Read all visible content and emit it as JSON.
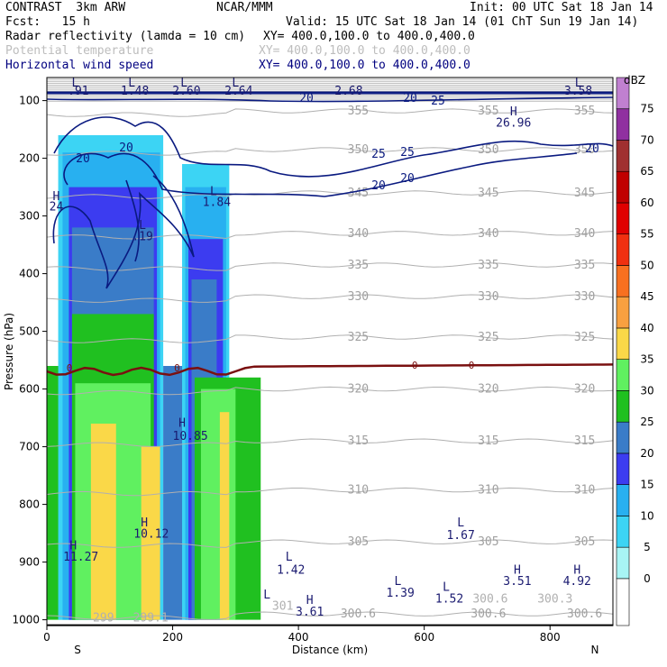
{
  "header": {
    "model": "CONTRAST  3km ARW",
    "center": "NCAR/MMM",
    "init": "Init: 00 UTC Sat 18 Jan 14",
    "fcst": "Fcst:   15 h",
    "valid": "Valid: 15 UTC Sat 18 Jan 14 (01 ChT Sun 19 Jan 14)",
    "fields": [
      {
        "name": "Radar reflectivity (lamda = 10 cm)",
        "xy": "XY= 400.0,100.0 to 400.0,400.0",
        "color": "#000000"
      },
      {
        "name": "Potential temperature",
        "xy": "XY= 400.0,100.0 to 400.0,400.0",
        "color": "#bdbdbd"
      },
      {
        "name": "Horizontal wind speed",
        "xy": "XY= 400.0,100.0 to 400.0,400.0",
        "color": "#000080"
      }
    ]
  },
  "chart_data": {
    "type": "cross-section contour",
    "xlabel": "Distance (km)",
    "ylabel": "Pressure (hPa)",
    "xlim": [
      0,
      900
    ],
    "ylim": [
      1010,
      60
    ],
    "x_ticks": [
      0,
      200,
      400,
      600,
      800
    ],
    "y_ticks": [
      100,
      200,
      300,
      400,
      500,
      600,
      700,
      800,
      900,
      1000
    ],
    "x_end_labels": {
      "left": "S",
      "right": "N"
    },
    "colorbar": {
      "unit": "dBZ",
      "levels": [
        0,
        5,
        10,
        15,
        20,
        25,
        30,
        35,
        40,
        45,
        50,
        55,
        60,
        65,
        70,
        75
      ],
      "colors": [
        "#ffffff",
        "#a8f4f4",
        "#3cd4f4",
        "#28b0f0",
        "#3c3cf0",
        "#3a7cc8",
        "#20c020",
        "#60f060",
        "#fad848",
        "#f8a040",
        "#f87020",
        "#f03010",
        "#e00000",
        "#c00000",
        "#a03030",
        "#9030a0",
        "#c080d0"
      ]
    },
    "reflectivity_columns": [
      {
        "x0": 0,
        "x1": 50,
        "bottom": 1000,
        "top": 560,
        "level": 25
      },
      {
        "x0": 18,
        "x1": 185,
        "bottom": 1000,
        "top": 160,
        "level": 5
      },
      {
        "x0": 25,
        "x1": 180,
        "bottom": 1000,
        "top": 190,
        "level": 10
      },
      {
        "x0": 35,
        "x1": 175,
        "bottom": 1000,
        "top": 250,
        "level": 15
      },
      {
        "x0": 40,
        "x1": 170,
        "bottom": 1000,
        "top": 320,
        "level": 20
      },
      {
        "x0": 40,
        "x1": 170,
        "bottom": 1000,
        "top": 470,
        "level": 25
      },
      {
        "x0": 45,
        "x1": 165,
        "bottom": 1000,
        "top": 590,
        "level": 30
      },
      {
        "x0": 70,
        "x1": 110,
        "bottom": 1000,
        "top": 660,
        "level": 35
      },
      {
        "x0": 150,
        "x1": 180,
        "bottom": 1000,
        "top": 700,
        "level": 35
      },
      {
        "x0": 185,
        "x1": 225,
        "bottom": 1000,
        "top": 560,
        "level": 20
      },
      {
        "x0": 215,
        "x1": 290,
        "bottom": 1000,
        "top": 210,
        "level": 5
      },
      {
        "x0": 220,
        "x1": 285,
        "bottom": 1000,
        "top": 250,
        "level": 10
      },
      {
        "x0": 225,
        "x1": 280,
        "bottom": 1000,
        "top": 340,
        "level": 15
      },
      {
        "x0": 230,
        "x1": 270,
        "bottom": 1000,
        "top": 410,
        "level": 20
      },
      {
        "x0": 235,
        "x1": 340,
        "bottom": 1000,
        "top": 580,
        "level": 25
      },
      {
        "x0": 245,
        "x1": 300,
        "bottom": 1000,
        "top": 600,
        "level": 30
      },
      {
        "x0": 275,
        "x1": 290,
        "bottom": 1000,
        "top": 640,
        "level": 35
      }
    ],
    "theta_isentropes": [
      {
        "value": "355",
        "pressure": 118
      },
      {
        "value": "350",
        "pressure": 185
      },
      {
        "value": "345",
        "pressure": 260
      },
      {
        "value": "340",
        "pressure": 330
      },
      {
        "value": "335",
        "pressure": 385
      },
      {
        "value": "330",
        "pressure": 440
      },
      {
        "value": "325",
        "pressure": 510
      },
      {
        "value": "320",
        "pressure": 600
      },
      {
        "value": "315",
        "pressure": 690
      },
      {
        "value": "310",
        "pressure": 775
      },
      {
        "value": "305",
        "pressure": 865
      },
      {
        "value": "300.6",
        "pressure": 990
      }
    ],
    "freezing_level": {
      "label": "0",
      "pressure": 560
    },
    "wind_contours": [
      "20",
      "25"
    ],
    "annotations": [
      {
        "text": "L",
        "x": 45,
        "p": 68
      },
      {
        "text": ".91",
        "x": 50,
        "p": 82
      },
      {
        "text": "L",
        "x": 135,
        "p": 68
      },
      {
        "text": "1.48",
        "x": 140,
        "p": 82
      },
      {
        "text": "L",
        "x": 218,
        "p": 68
      },
      {
        "text": "2.60",
        "x": 222,
        "p": 82
      },
      {
        "text": "L",
        "x": 300,
        "p": 68
      },
      {
        "text": "2.64",
        "x": 305,
        "p": 82
      },
      {
        "text": "2.68",
        "x": 480,
        "p": 82
      },
      {
        "text": "L",
        "x": 845,
        "p": 68
      },
      {
        "text": "3.58",
        "x": 845,
        "p": 82
      },
      {
        "text": "H",
        "x": 742,
        "p": 118
      },
      {
        "text": "26.96",
        "x": 742,
        "p": 137
      },
      {
        "text": "H",
        "x": 15,
        "p": 265
      },
      {
        "text": "24",
        "x": 15,
        "p": 283
      },
      {
        "text": "L",
        "x": 265,
        "p": 256
      },
      {
        "text": "1.84",
        "x": 270,
        "p": 275
      },
      {
        "text": "L",
        "x": 152,
        "p": 315
      },
      {
        "text": ".19",
        "x": 152,
        "p": 334
      },
      {
        "text": "H",
        "x": 215,
        "p": 658
      },
      {
        "text": "10.85",
        "x": 228,
        "p": 680
      },
      {
        "text": "H",
        "x": 155,
        "p": 830
      },
      {
        "text": "10.12",
        "x": 166,
        "p": 850
      },
      {
        "text": "L",
        "x": 658,
        "p": 830
      },
      {
        "text": "1.67",
        "x": 658,
        "p": 852
      },
      {
        "text": "H",
        "x": 42,
        "p": 870
      },
      {
        "text": "11.27",
        "x": 54,
        "p": 890
      },
      {
        "text": "L",
        "x": 385,
        "p": 890
      },
      {
        "text": "1.42",
        "x": 388,
        "p": 912
      },
      {
        "text": "H",
        "x": 748,
        "p": 912
      },
      {
        "text": "3.51",
        "x": 748,
        "p": 932
      },
      {
        "text": "H",
        "x": 843,
        "p": 912
      },
      {
        "text": "4.92",
        "x": 843,
        "p": 932
      },
      {
        "text": "L",
        "x": 558,
        "p": 932
      },
      {
        "text": "1.39",
        "x": 562,
        "p": 952
      },
      {
        "text": "L",
        "x": 635,
        "p": 942
      },
      {
        "text": "1.52",
        "x": 640,
        "p": 962
      },
      {
        "text": "L",
        "x": 350,
        "p": 955
      },
      {
        "text": "H",
        "x": 418,
        "p": 965
      },
      {
        "text": "3.61",
        "x": 418,
        "p": 985
      },
      {
        "text": "300.6",
        "x": 705,
        "p": 962
      },
      {
        "text": "300.3",
        "x": 808,
        "p": 962
      },
      {
        "text": "301",
        "x": 375,
        "p": 975
      },
      {
        "text": "299",
        "x": 90,
        "p": 995
      },
      {
        "text": "299.1",
        "x": 165,
        "p": 995
      }
    ]
  }
}
